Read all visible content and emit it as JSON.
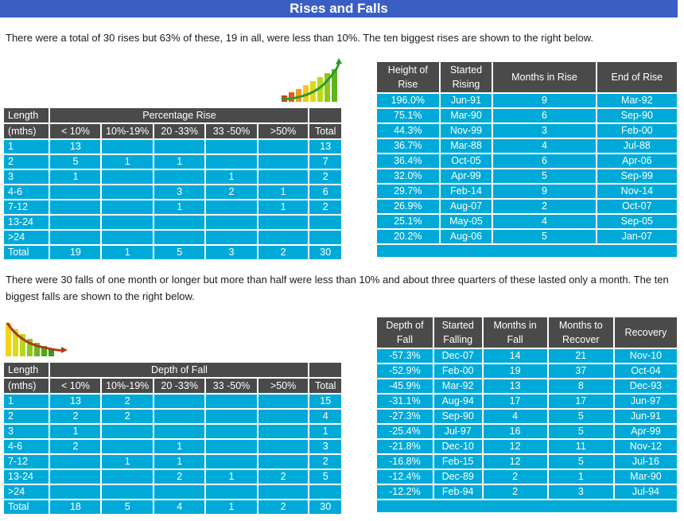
{
  "title": "Rises and Falls",
  "rises": {
    "intro": "There were a total of 30 rises but 63% of these, 19 in all, were less than 10%. The ten biggest rises are shown to the right below.",
    "dist": {
      "h_length": "Length",
      "h_mths": "(mths)",
      "h_group": "Percentage Rise",
      "h_total": "Total",
      "cols": [
        "< 10%",
        "10%-19%",
        "20 -33%",
        "33 -50%",
        ">50%"
      ],
      "rows": [
        {
          "label": "1",
          "cells": [
            "13",
            "",
            "",
            "",
            ""
          ],
          "total": "13"
        },
        {
          "label": "2",
          "cells": [
            "5",
            "1",
            "1",
            "",
            ""
          ],
          "total": "7"
        },
        {
          "label": "3",
          "cells": [
            "1",
            "",
            "",
            "1",
            ""
          ],
          "total": "2"
        },
        {
          "label": "4-6",
          "cells": [
            "",
            "",
            "3",
            "2",
            "1"
          ],
          "total": "6"
        },
        {
          "label": "7-12",
          "cells": [
            "",
            "",
            "1",
            "",
            "1"
          ],
          "total": "2"
        },
        {
          "label": "13-24",
          "cells": [
            "",
            "",
            "",
            "",
            ""
          ],
          "total": ""
        },
        {
          "label": ">24",
          "cells": [
            "",
            "",
            "",
            "",
            ""
          ],
          "total": ""
        },
        {
          "label": "Total",
          "cells": [
            "19",
            "1",
            "5",
            "3",
            "2"
          ],
          "total": "30"
        }
      ]
    },
    "top": {
      "headers": [
        [
          "Height of",
          "Rise"
        ],
        [
          "Started",
          "Rising"
        ],
        [
          "Months in Rise"
        ],
        [
          "End of Rise"
        ]
      ],
      "rows": [
        [
          "196.0%",
          "Jun-91",
          "9",
          "Mar-92"
        ],
        [
          "75.1%",
          "Mar-90",
          "6",
          "Sep-90"
        ],
        [
          "44.3%",
          "Nov-99",
          "3",
          "Feb-00"
        ],
        [
          "36.7%",
          "Mar-88",
          "4",
          "Jul-88"
        ],
        [
          "36.4%",
          "Oct-05",
          "6",
          "Apr-06"
        ],
        [
          "32.0%",
          "Apr-99",
          "5",
          "Sep-99"
        ],
        [
          "29.7%",
          "Feb-14",
          "9",
          "Nov-14"
        ],
        [
          "26.9%",
          "Aug-07",
          "2",
          "Oct-07"
        ],
        [
          "25.1%",
          "May-05",
          "4",
          "Sep-05"
        ],
        [
          "20.2%",
          "Aug-06",
          "5",
          "Jan-07"
        ]
      ]
    }
  },
  "falls": {
    "intro": "There were 30 falls of one month or longer but more than half were less than 10% and about three quarters of these lasted only a month. The ten biggest falls are shown to the right below.",
    "dist": {
      "h_length": "Length",
      "h_mths": "(mths)",
      "h_group": "Depth of Fall",
      "h_total": "Total",
      "cols": [
        "< 10%",
        "10%-19%",
        "20 -33%",
        "33 -50%",
        ">50%"
      ],
      "rows": [
        {
          "label": "1",
          "cells": [
            "13",
            "2",
            "",
            "",
            ""
          ],
          "total": "15"
        },
        {
          "label": "2",
          "cells": [
            "2",
            "2",
            "",
            "",
            ""
          ],
          "total": "4"
        },
        {
          "label": "3",
          "cells": [
            "1",
            "",
            "",
            "",
            ""
          ],
          "total": "1"
        },
        {
          "label": "4-6",
          "cells": [
            "2",
            "",
            "1",
            "",
            ""
          ],
          "total": "3"
        },
        {
          "label": "7-12",
          "cells": [
            "",
            "1",
            "1",
            "",
            ""
          ],
          "total": "2"
        },
        {
          "label": "13-24",
          "cells": [
            "",
            "",
            "2",
            "1",
            "2"
          ],
          "total": "5"
        },
        {
          "label": ">24",
          "cells": [
            "",
            "",
            "",
            "",
            ""
          ],
          "total": ""
        },
        {
          "label": "Total",
          "cells": [
            "18",
            "5",
            "4",
            "1",
            "2"
          ],
          "total": "30"
        }
      ]
    },
    "top": {
      "headers": [
        [
          "Depth of",
          "Fall"
        ],
        [
          "Started",
          "Falling"
        ],
        [
          "Months in",
          "Fall"
        ],
        [
          "Months to",
          "Recover"
        ],
        [
          "Recovery"
        ]
      ],
      "rows": [
        [
          "-57.3%",
          "Dec-07",
          "14",
          "21",
          "Nov-10"
        ],
        [
          "-52.9%",
          "Feb-00",
          "19",
          "37",
          "Oct-04"
        ],
        [
          "-45.9%",
          "Mar-92",
          "13",
          "8",
          "Dec-93"
        ],
        [
          "-31.1%",
          "Aug-94",
          "17",
          "17",
          "Jun-97"
        ],
        [
          "-27.3%",
          "Sep-90",
          "4",
          "5",
          "Jun-91"
        ],
        [
          "-25.4%",
          "Jul-97",
          "16",
          "5",
          "Apr-99"
        ],
        [
          "-21.8%",
          "Dec-10",
          "12",
          "11",
          "Nov-12"
        ],
        [
          "-16.8%",
          "Feb-15",
          "12",
          "5",
          "Jul-16"
        ],
        [
          "-12.4%",
          "Dec-89",
          "2",
          "1",
          "Mar-90"
        ],
        [
          "-12.2%",
          "Feb-94",
          "2",
          "3",
          "Jul-94"
        ]
      ]
    }
  }
}
